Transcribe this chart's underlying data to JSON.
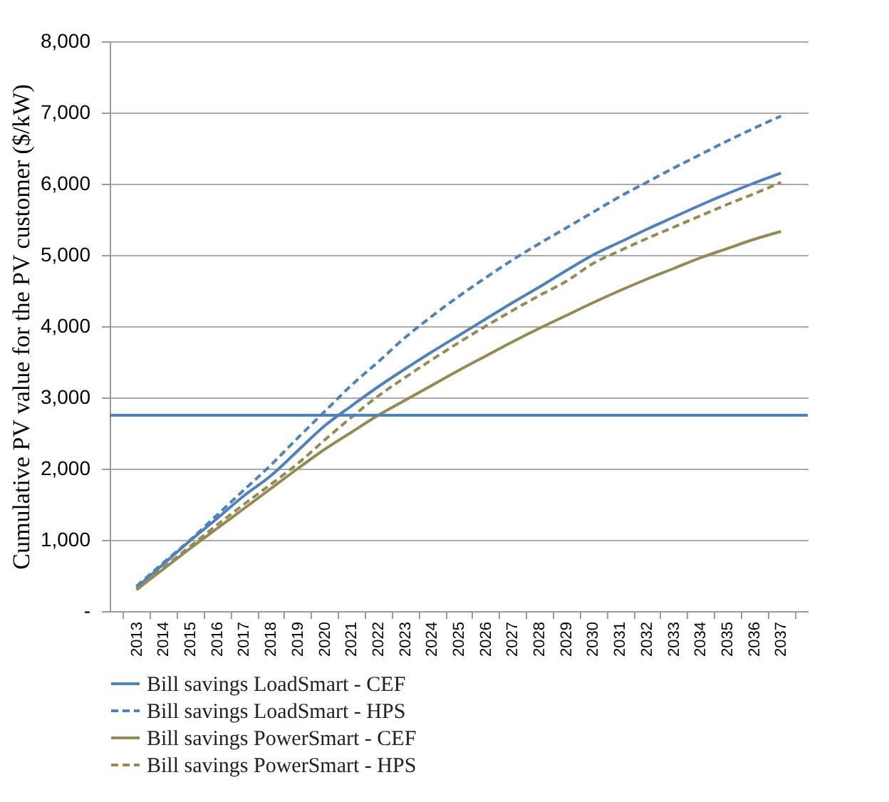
{
  "chart_data": {
    "type": "line",
    "ylabel": "Cumulative PV value for the PV customer ($/kW)",
    "categories": [
      "2013",
      "2014",
      "2015",
      "2016",
      "2017",
      "2018",
      "2019",
      "2020",
      "2021",
      "2022",
      "2023",
      "2024",
      "2025",
      "2026",
      "2027",
      "2028",
      "2029",
      "2030",
      "2031",
      "2032",
      "2033",
      "2034",
      "2035",
      "2036",
      "2037"
    ],
    "series": [
      {
        "name": "Bill savings LoadSmart - CEF",
        "color": "#4f81bd",
        "line_style": "solid",
        "values": [
          330,
          660,
          990,
          1300,
          1620,
          1900,
          2250,
          2600,
          2880,
          3150,
          3400,
          3640,
          3870,
          4100,
          4330,
          4550,
          4780,
          5000,
          5180,
          5360,
          5530,
          5700,
          5860,
          6010,
          6150
        ]
      },
      {
        "name": "Bill savings LoadSmart - HPS",
        "color": "#4f81bd",
        "line_style": "dashed",
        "values": [
          350,
          680,
          1000,
          1350,
          1700,
          2050,
          2430,
          2800,
          3170,
          3500,
          3840,
          4140,
          4420,
          4680,
          4930,
          5160,
          5380,
          5600,
          5820,
          6020,
          6220,
          6410,
          6600,
          6780,
          6950
        ]
      },
      {
        "name": "Bill savings PowerSmart - CEF",
        "color": "#948a54",
        "line_style": "solid",
        "values": [
          300,
          590,
          880,
          1160,
          1440,
          1720,
          2000,
          2270,
          2510,
          2750,
          2960,
          3170,
          3380,
          3580,
          3780,
          3970,
          4150,
          4330,
          4500,
          4660,
          4810,
          4960,
          5090,
          5220,
          5330
        ]
      },
      {
        "name": "Bill savings PowerSmart - HPS",
        "color": "#948a54",
        "line_style": "dashed",
        "values": [
          300,
          610,
          910,
          1210,
          1500,
          1780,
          2070,
          2400,
          2720,
          3020,
          3280,
          3530,
          3770,
          4000,
          4220,
          4430,
          4630,
          4880,
          5060,
          5230,
          5390,
          5550,
          5710,
          5860,
          6020
        ]
      }
    ],
    "ylim": [
      0,
      8000
    ],
    "yticks": [
      {
        "value": 0,
        "label": "-"
      },
      {
        "value": 1000,
        "label": "1,000"
      },
      {
        "value": 2000,
        "label": "2,000"
      },
      {
        "value": 3000,
        "label": "3,000"
      },
      {
        "value": 4000,
        "label": "4,000"
      },
      {
        "value": 5000,
        "label": "5,000"
      },
      {
        "value": 6000,
        "label": "6,000"
      },
      {
        "value": 7000,
        "label": "7,000"
      },
      {
        "value": 8000,
        "label": "8,000"
      }
    ],
    "ref_lines": [
      {
        "axis": "y",
        "value": 2750,
        "color": "#4f81bd"
      }
    ],
    "grid": "y",
    "legend": "bottom"
  }
}
